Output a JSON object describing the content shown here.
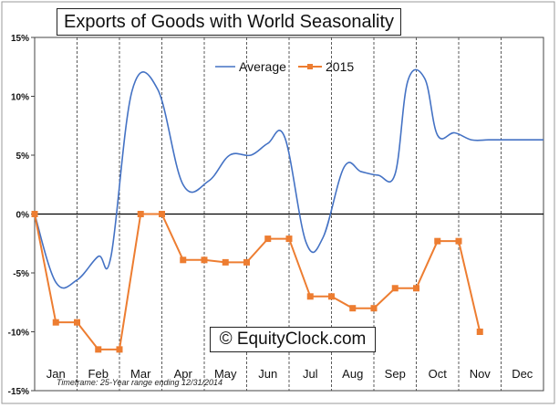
{
  "chart_data": {
    "type": "line",
    "title": "Exports of Goods with World Seasonality",
    "categories": [
      "Jan",
      "Feb",
      "Mar",
      "Apr",
      "May",
      "Jun",
      "Jul",
      "Aug",
      "Sep",
      "Oct",
      "Nov",
      "Dec"
    ],
    "ylim": [
      -15,
      15
    ],
    "yticks": [
      -15,
      -10,
      -5,
      0,
      5,
      10,
      15
    ],
    "ytick_labels": [
      "-15%",
      "-10%",
      "-5%",
      "0%",
      "5%",
      "10%",
      "15%"
    ],
    "grid": "vertical dashed separators between months",
    "legend_position": "top-center",
    "series": [
      {
        "name": "Average",
        "color": "#4472C4",
        "x": [
          0,
          0.5,
          1.0,
          1.5,
          1.8,
          2.3,
          2.9,
          3.5,
          4.1,
          4.6,
          5.1,
          5.5,
          5.9,
          6.4,
          6.8,
          7.3,
          7.7,
          8.1,
          8.5,
          8.8,
          9.2,
          9.5,
          9.9,
          10.3,
          10.7,
          11.1,
          11.6,
          12.0
        ],
        "values": [
          0,
          -5.8,
          -5.6,
          -3.6,
          -3.6,
          10.5,
          10.6,
          2.5,
          2.8,
          5.0,
          5.0,
          6.0,
          6.5,
          -2.4,
          -2.0,
          4.0,
          3.6,
          3.3,
          3.4,
          11.3,
          11.5,
          6.7,
          6.9,
          6.3,
          6.3,
          6.3,
          6.3,
          6.3
        ]
      },
      {
        "name": "2015",
        "color": "#ED7D31",
        "x": [
          0,
          0.5,
          1.0,
          1.5,
          2.0,
          2.5,
          3.0,
          3.5,
          4.0,
          4.5,
          5.0,
          5.5,
          6.0,
          6.5,
          7.0,
          7.5,
          8.0,
          8.5,
          9.0,
          9.5,
          10.0
        ],
        "values": [
          0,
          -9.2,
          -9.2,
          -11.5,
          -11.5,
          0,
          0,
          -3.9,
          -3.9,
          -4.1,
          -4.1,
          -2.1,
          -2.1,
          -7.0,
          -7.0,
          -8.0,
          -8.0,
          -6.3,
          -6.3,
          -2.3,
          -2.3
        ]
      }
    ],
    "extra_point": {
      "x": 10.5,
      "value": -10.0
    },
    "watermark": "© EquityClock.com",
    "footnote": "Timeframe: 25-Year range ending 12/31/2014"
  }
}
